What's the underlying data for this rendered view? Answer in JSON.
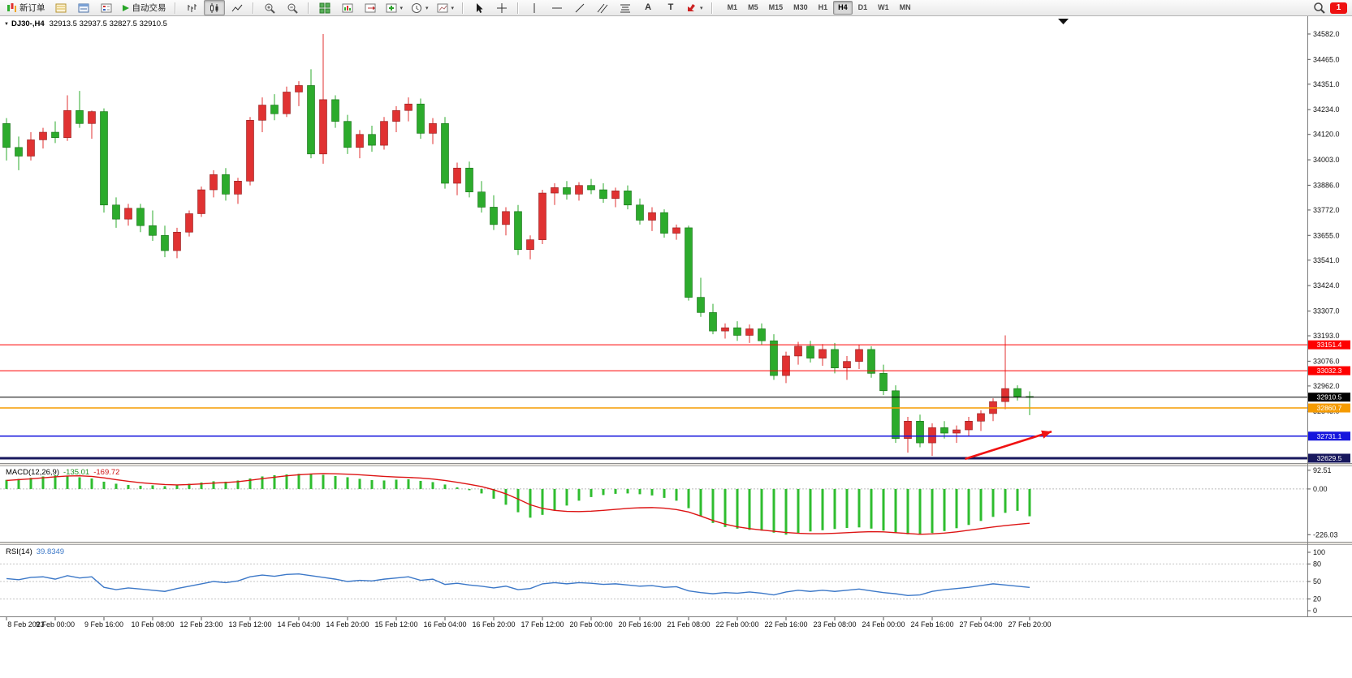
{
  "toolbar": {
    "new_order": {
      "label": "新订单"
    },
    "auto_trading": {
      "label": "自动交易"
    },
    "timeframes": {
      "options": [
        "M1",
        "M5",
        "M15",
        "M30",
        "H1",
        "H4",
        "D1",
        "W1",
        "MN"
      ],
      "active": "H4"
    },
    "notification": {
      "count": "1"
    },
    "icons": [
      "new-order-icon",
      "market-watch-icon",
      "data-window-icon",
      "navigator-icon",
      "auto-trading-play-icon",
      "bar-chart-icon",
      "candlestick-chart-icon",
      "line-chart-icon",
      "zoom-in-icon",
      "zoom-out-icon",
      "tile-windows-icon",
      "new-chart-icon",
      "chart-shift-icon",
      "indicators-icon",
      "periods-icon",
      "templates-icon",
      "cursor-icon",
      "crosshair-icon",
      "vertical-line-icon",
      "horizontal-line-icon",
      "trendline-icon",
      "channel-icon",
      "fibonacci-icon",
      "text-icon",
      "label-icon",
      "arrow-tools-icon",
      "search-icon"
    ]
  },
  "chart": {
    "symbol_period": "DJ30-,H4",
    "ohlc": "32913.5 32937.5 32827.5 32910.5"
  },
  "macd_panel": {
    "name": "MACD(12,26,9)",
    "value": "-135.01",
    "signal_value": "-169.72"
  },
  "rsi_panel": {
    "name": "RSI(14)",
    "value": "39.8349"
  },
  "chart_data": [
    {
      "type": "candlestick",
      "symbol": "DJ30-",
      "period": "H4",
      "current_ohlc": {
        "open": 32913.5,
        "high": 32937.5,
        "low": 32827.5,
        "close": 32910.5
      },
      "ylim": [
        32607,
        34664
      ],
      "colors": {
        "bull": "#e03232",
        "bear": "#2cab2c"
      },
      "price_axis_labels": [
        "34582.0",
        "34465.0",
        "34351.0",
        "34234.0",
        "34120.0",
        "34003.0",
        "33886.0",
        "33772.0",
        "33655.0",
        "33541.0",
        "33424.0",
        "33307.0",
        "33193.0",
        "33076.0",
        "32962.0",
        "32845.0"
      ],
      "time_axis_labels": [
        "8 Feb 2023",
        "9 Feb 00:00",
        "9 Feb 16:00",
        "10 Feb 08:00",
        "12 Feb 23:00",
        "13 Feb 12:00",
        "14 Feb 04:00",
        "14 Feb 20:00",
        "15 Feb 12:00",
        "16 Feb 04:00",
        "16 Feb 20:00",
        "17 Feb 12:00",
        "20 Feb 00:00",
        "20 Feb 16:00",
        "21 Feb 08:00",
        "22 Feb 00:00",
        "22 Feb 16:00",
        "23 Feb 08:00",
        "24 Feb 00:00",
        "24 Feb 16:00",
        "27 Feb 04:00",
        "27 Feb 20:00"
      ],
      "candles_per_label": 4,
      "hlines": [
        {
          "price": 33151.4,
          "label": "33151.4",
          "color": "#fe0000",
          "width": 1
        },
        {
          "price": 33032.3,
          "label": "33032.3",
          "color": "#fe0000",
          "width": 1
        },
        {
          "price": 32910.5,
          "label": "32910.5",
          "color": "#000000",
          "width": 1,
          "role": "current-price"
        },
        {
          "price": 32860.7,
          "label": "32860.7",
          "color": "#f59b00",
          "width": 1.5
        },
        {
          "price": 32731.1,
          "label": "32731.1",
          "color": "#1515dd",
          "width": 1.5
        },
        {
          "price": 32629.5,
          "label": "32629.5",
          "color": "#18185e",
          "width": 3
        }
      ],
      "arrow_annotation": {
        "from_index": 78.7,
        "from_price": 32626,
        "to_index": 85.8,
        "to_price": 32752,
        "color": "#f01212"
      },
      "candles": [
        [
          34170,
          34195,
          34000,
          34060
        ],
        [
          34060,
          34110,
          33955,
          34020
        ],
        [
          34020,
          34130,
          34000,
          34095
        ],
        [
          34095,
          34150,
          34055,
          34130
        ],
        [
          34130,
          34180,
          34080,
          34105
        ],
        [
          34105,
          34300,
          34090,
          34230
        ],
        [
          34230,
          34320,
          34150,
          34170
        ],
        [
          34170,
          34230,
          34100,
          34225
        ],
        [
          34225,
          34240,
          33760,
          33795
        ],
        [
          33795,
          33830,
          33690,
          33730
        ],
        [
          33730,
          33800,
          33700,
          33780
        ],
        [
          33780,
          33800,
          33670,
          33700
        ],
        [
          33700,
          33770,
          33630,
          33655
        ],
        [
          33655,
          33700,
          33555,
          33585
        ],
        [
          33585,
          33690,
          33550,
          33670
        ],
        [
          33670,
          33770,
          33650,
          33755
        ],
        [
          33755,
          33880,
          33740,
          33865
        ],
        [
          33865,
          33955,
          33830,
          33935
        ],
        [
          33935,
          33965,
          33815,
          33845
        ],
        [
          33845,
          33920,
          33800,
          33905
        ],
        [
          33905,
          34200,
          33885,
          34185
        ],
        [
          34185,
          34290,
          34130,
          34255
        ],
        [
          34255,
          34305,
          34185,
          34215
        ],
        [
          34215,
          34340,
          34200,
          34315
        ],
        [
          34315,
          34365,
          34250,
          34345
        ],
        [
          34345,
          34420,
          34010,
          34030
        ],
        [
          34030,
          34582,
          33985,
          34280
        ],
        [
          34280,
          34300,
          34150,
          34180
        ],
        [
          34180,
          34210,
          34030,
          34060
        ],
        [
          34060,
          34140,
          34010,
          34120
        ],
        [
          34120,
          34160,
          34040,
          34070
        ],
        [
          34070,
          34200,
          34050,
          34180
        ],
        [
          34180,
          34250,
          34130,
          34230
        ],
        [
          34230,
          34290,
          34180,
          34260
        ],
        [
          34260,
          34285,
          34100,
          34125
        ],
        [
          34125,
          34195,
          34075,
          34170
        ],
        [
          34170,
          34200,
          33870,
          33895
        ],
        [
          33895,
          33990,
          33840,
          33965
        ],
        [
          33965,
          33995,
          33830,
          33855
        ],
        [
          33855,
          33905,
          33760,
          33785
        ],
        [
          33785,
          33840,
          33680,
          33705
        ],
        [
          33705,
          33785,
          33655,
          33765
        ],
        [
          33765,
          33795,
          33565,
          33590
        ],
        [
          33590,
          33655,
          33545,
          33635
        ],
        [
          33635,
          33865,
          33615,
          33850
        ],
        [
          33850,
          33895,
          33795,
          33875
        ],
        [
          33875,
          33905,
          33820,
          33845
        ],
        [
          33845,
          33900,
          33815,
          33885
        ],
        [
          33885,
          33915,
          33845,
          33865
        ],
        [
          33865,
          33895,
          33805,
          33825
        ],
        [
          33825,
          33875,
          33785,
          33860
        ],
        [
          33860,
          33885,
          33775,
          33795
        ],
        [
          33795,
          33825,
          33705,
          33725
        ],
        [
          33725,
          33785,
          33675,
          33760
        ],
        [
          33760,
          33775,
          33645,
          33665
        ],
        [
          33665,
          33705,
          33635,
          33690
        ],
        [
          33690,
          33700,
          33355,
          33370
        ],
        [
          33370,
          33460,
          33280,
          33300
        ],
        [
          33300,
          33340,
          33200,
          33215
        ],
        [
          33215,
          33250,
          33180,
          33230
        ],
        [
          33230,
          33260,
          33170,
          33195
        ],
        [
          33195,
          33245,
          33160,
          33225
        ],
        [
          33225,
          33250,
          33150,
          33170
        ],
        [
          33170,
          33200,
          32990,
          33010
        ],
        [
          33010,
          33120,
          32975,
          33100
        ],
        [
          33100,
          33165,
          33060,
          33145
        ],
        [
          33145,
          33170,
          33070,
          33090
        ],
        [
          33090,
          33155,
          33055,
          33130
        ],
        [
          33130,
          33160,
          33020,
          33045
        ],
        [
          33045,
          33100,
          32990,
          33075
        ],
        [
          33075,
          33150,
          33040,
          33130
        ],
        [
          33130,
          33145,
          33000,
          33020
        ],
        [
          33020,
          33060,
          32920,
          32940
        ],
        [
          32940,
          32965,
          32700,
          32720
        ],
        [
          32720,
          32820,
          32655,
          32800
        ],
        [
          32800,
          32830,
          32680,
          32700
        ],
        [
          32700,
          32790,
          32640,
          32770
        ],
        [
          32770,
          32800,
          32720,
          32745
        ],
        [
          32745,
          32780,
          32700,
          32760
        ],
        [
          32760,
          32820,
          32730,
          32800
        ],
        [
          32800,
          32850,
          32755,
          32835
        ],
        [
          32835,
          32905,
          32800,
          32890
        ],
        [
          32890,
          33195,
          32855,
          32950
        ],
        [
          32950,
          32965,
          32895,
          32913
        ],
        [
          32913.5,
          32937.5,
          32827.5,
          32910.5
        ]
      ]
    },
    {
      "type": "bar",
      "name": "MACD",
      "params": "12,26,9",
      "value": -135.01,
      "signal": -169.72,
      "axis_labels": [
        "92.51",
        "0.00",
        "-226.03"
      ],
      "ylim": [
        -261,
        112
      ],
      "colors": {
        "histogram": "#2fbd2f",
        "signal": "#dd1414"
      },
      "histogram": [
        45,
        50,
        55,
        62,
        68,
        64,
        58,
        52,
        36,
        26,
        20,
        16,
        18,
        14,
        18,
        26,
        32,
        38,
        36,
        42,
        52,
        62,
        68,
        72,
        75,
        76,
        70,
        64,
        58,
        50,
        44,
        42,
        46,
        48,
        40,
        34,
        22,
        8,
        -6,
        -22,
        -48,
        -78,
        -115,
        -142,
        -128,
        -105,
        -82,
        -58,
        -40,
        -30,
        -24,
        -22,
        -26,
        -32,
        -44,
        -58,
        -95,
        -135,
        -168,
        -188,
        -196,
        -202,
        -206,
        -216,
        -226,
        -219,
        -210,
        -204,
        -198,
        -193,
        -190,
        -196,
        -206,
        -216,
        -224,
        -226,
        -218,
        -208,
        -194,
        -178,
        -158,
        -138,
        -118,
        -108,
        -135
      ],
      "signal_line": [
        42,
        46,
        50,
        55,
        60,
        64,
        65,
        62,
        55,
        46,
        38,
        31,
        26,
        22,
        20,
        22,
        25,
        29,
        32,
        36,
        43,
        51,
        58,
        65,
        70,
        74,
        76,
        75,
        73,
        70,
        66,
        62,
        59,
        57,
        54,
        49,
        42,
        33,
        23,
        12,
        -4,
        -24,
        -50,
        -78,
        -96,
        -106,
        -111,
        -112,
        -110,
        -106,
        -101,
        -96,
        -93,
        -92,
        -95,
        -102,
        -114,
        -134,
        -156,
        -174,
        -187,
        -196,
        -203,
        -209,
        -215,
        -219,
        -221,
        -221,
        -219,
        -216,
        -213,
        -211,
        -212,
        -216,
        -220,
        -224,
        -222,
        -218,
        -212,
        -204,
        -196,
        -188,
        -181,
        -175,
        -169.7
      ]
    },
    {
      "type": "line",
      "name": "RSI",
      "params": "14",
      "value": 39.8349,
      "axis_labels": [
        "100",
        "80",
        "50",
        "20",
        "0"
      ],
      "levels": [
        80,
        50,
        20
      ],
      "ylim": [
        0,
        100
      ],
      "color": "#3c78c8",
      "values": [
        55,
        53,
        57,
        58,
        54,
        60,
        56,
        58,
        40,
        36,
        39,
        37,
        35,
        33,
        38,
        42,
        46,
        50,
        48,
        51,
        58,
        61,
        59,
        62,
        63,
        60,
        57,
        54,
        50,
        52,
        51,
        54,
        56,
        58,
        52,
        54,
        45,
        47,
        44,
        42,
        39,
        42,
        36,
        38,
        46,
        48,
        46,
        48,
        47,
        45,
        46,
        44,
        42,
        43,
        40,
        41,
        34,
        31,
        29,
        31,
        30,
        32,
        30,
        27,
        32,
        35,
        33,
        35,
        33,
        35,
        37,
        34,
        31,
        29,
        26,
        27,
        33,
        36,
        38,
        40,
        43,
        46,
        44,
        42,
        39.83
      ]
    }
  ]
}
